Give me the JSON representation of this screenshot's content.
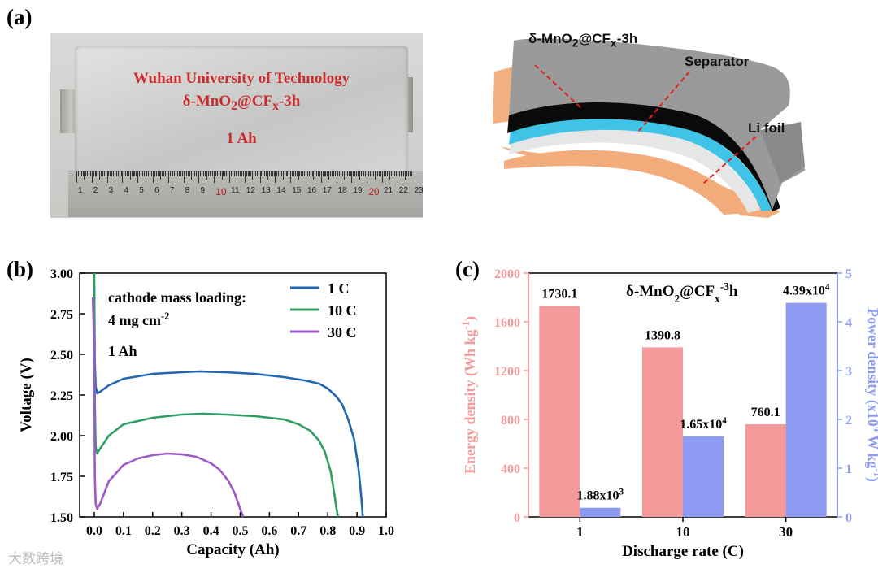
{
  "panel_a": {
    "letter": "(a)",
    "photo_lines": [
      "Wuhan University of Technology",
      "δ-MnO2@CFx-3h",
      "1 Ah"
    ],
    "ruler_numbers": [
      "1",
      "2",
      "3",
      "4",
      "5",
      "6",
      "7",
      "8",
      "9",
      "10",
      "11",
      "12",
      "13",
      "14",
      "15",
      "16",
      "17",
      "18",
      "19",
      "20",
      "21",
      "22",
      "23"
    ],
    "ruler_red": [
      "10",
      "20"
    ],
    "schematic_labels": {
      "cathode": "δ-MnO2@CFx-3h",
      "separator": "Separator",
      "anode": "Li foil"
    },
    "colors": {
      "tab": "#f0b080",
      "shell": "#9a9a9a",
      "cathode": "#0a0a0a",
      "separator": "#3fc3e6",
      "li": "#dcdcdc",
      "base": "#f2ac7c",
      "guide": "#e02020"
    }
  },
  "watermark": "大数跨境",
  "chart_data": [
    {
      "type": "line",
      "letter": "(b)",
      "xlabel": "Capacity (Ah)",
      "ylabel": "Voltage (V)",
      "xlim": [
        -0.05,
        1.0
      ],
      "ylim": [
        1.5,
        3.0
      ],
      "xticks": [
        "0.0",
        "0.1",
        "0.2",
        "0.3",
        "0.4",
        "0.5",
        "0.6",
        "0.7",
        "0.8",
        "0.9",
        "1.0"
      ],
      "yticks": [
        "1.50",
        "1.75",
        "2.00",
        "2.25",
        "2.50",
        "2.75",
        "3.00"
      ],
      "annotation": [
        "cathode mass loading:",
        "4 mg cm-2",
        "1 Ah"
      ],
      "legend_position": "top-right",
      "series": [
        {
          "name": "1 C",
          "color": "#2166b0",
          "x": [
            0.0,
            0.002,
            0.005,
            0.01,
            0.02,
            0.05,
            0.1,
            0.2,
            0.3,
            0.36,
            0.45,
            0.55,
            0.65,
            0.72,
            0.77,
            0.8,
            0.83,
            0.85,
            0.87,
            0.89,
            0.905,
            0.915,
            0.92
          ],
          "y": [
            2.92,
            2.45,
            2.3,
            2.26,
            2.27,
            2.31,
            2.35,
            2.38,
            2.39,
            2.395,
            2.39,
            2.38,
            2.36,
            2.34,
            2.32,
            2.29,
            2.24,
            2.19,
            2.1,
            1.98,
            1.8,
            1.62,
            1.5
          ]
        },
        {
          "name": "10 C",
          "color": "#2e9e63",
          "x": [
            0.0,
            0.002,
            0.005,
            0.01,
            0.02,
            0.05,
            0.1,
            0.2,
            0.3,
            0.37,
            0.45,
            0.55,
            0.65,
            0.7,
            0.74,
            0.77,
            0.79,
            0.81,
            0.82,
            0.83,
            0.835
          ],
          "y": [
            3.0,
            2.2,
            1.93,
            1.89,
            1.92,
            2.0,
            2.07,
            2.11,
            2.13,
            2.135,
            2.13,
            2.12,
            2.1,
            2.07,
            2.03,
            1.97,
            1.9,
            1.78,
            1.67,
            1.55,
            1.5
          ]
        },
        {
          "name": "30 C",
          "color": "#9b59c9",
          "x": [
            -0.005,
            0.0,
            0.002,
            0.005,
            0.01,
            0.02,
            0.05,
            0.1,
            0.15,
            0.2,
            0.25,
            0.3,
            0.35,
            0.4,
            0.43,
            0.46,
            0.48,
            0.5,
            0.51
          ],
          "y": [
            2.85,
            2.55,
            1.75,
            1.58,
            1.55,
            1.58,
            1.72,
            1.82,
            1.86,
            1.88,
            1.89,
            1.885,
            1.87,
            1.83,
            1.79,
            1.72,
            1.65,
            1.55,
            1.5
          ]
        }
      ]
    },
    {
      "type": "bar",
      "letter": "(c)",
      "title": "δ-MnO2@CFx-3h",
      "xlabel": "Discharge rate (C)",
      "ylabel": "Energy density (Wh kg-1)",
      "y2label": "Power density (x10^4 W kg-1)",
      "categories": [
        "1",
        "10",
        "30"
      ],
      "ylim": [
        0,
        2000
      ],
      "y2lim": [
        0,
        5
      ],
      "yticks": [
        "0",
        "400",
        "800",
        "1200",
        "1600",
        "2000"
      ],
      "y2ticks": [
        "0",
        "1",
        "2",
        "3",
        "4",
        "5"
      ],
      "series": [
        {
          "name": "Energy density",
          "axis": "left",
          "color": "#f49a9a",
          "values": [
            1730.1,
            1390.8,
            760.1
          ],
          "labels": [
            "1730.1",
            "1390.8",
            "760.1"
          ]
        },
        {
          "name": "Power density",
          "axis": "right",
          "color": "#8d9af2",
          "values": [
            0.188,
            1.65,
            4.39
          ],
          "labels": [
            "1.88x10^3",
            "1.65x10^4",
            "4.39x10^4"
          ]
        }
      ]
    }
  ]
}
